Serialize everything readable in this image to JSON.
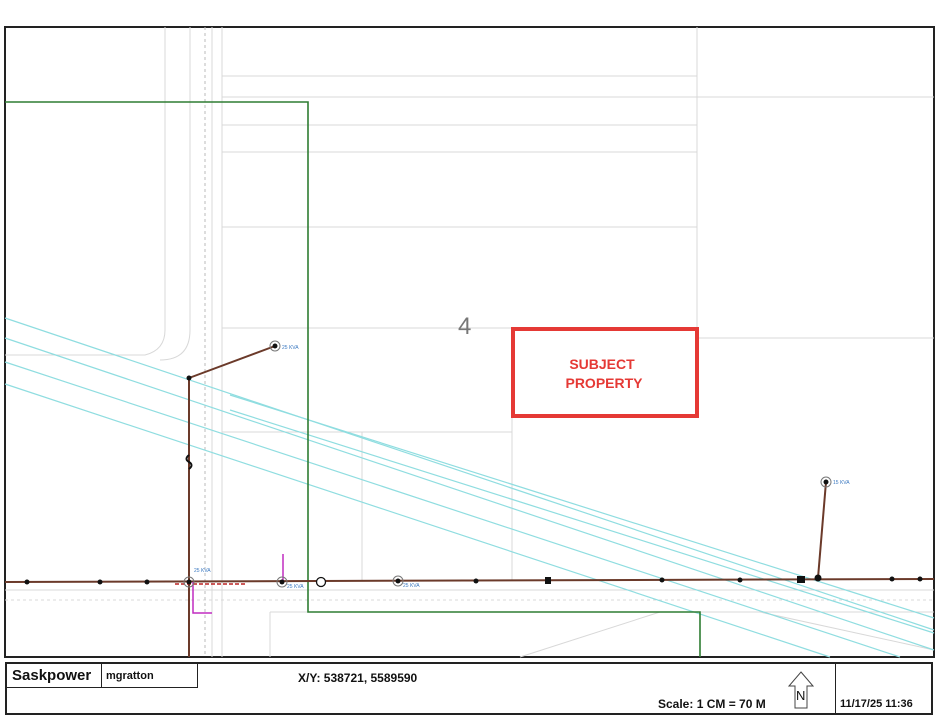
{
  "map": {
    "parcel_label": "4",
    "subject_label_line1": "SUBJECT",
    "subject_label_line2": "PROPERTY",
    "transformers": [
      "25 KVA",
      "25 KVA",
      "25 KVA",
      "25 KVA",
      "15 KVA"
    ],
    "colors": {
      "boundary": "#2e7d32",
      "powerline": "#6b3a2a",
      "highway": "#8fdde0",
      "subject": "#e53935",
      "service": "#c02cc0"
    }
  },
  "footer": {
    "company": "Saskpower",
    "user": "mgratton",
    "coordinates": "X/Y: 538721, 5589590",
    "scale": "Scale: 1 CM = 70 M",
    "north": "N",
    "datetime": "11/17/25  11:36"
  }
}
